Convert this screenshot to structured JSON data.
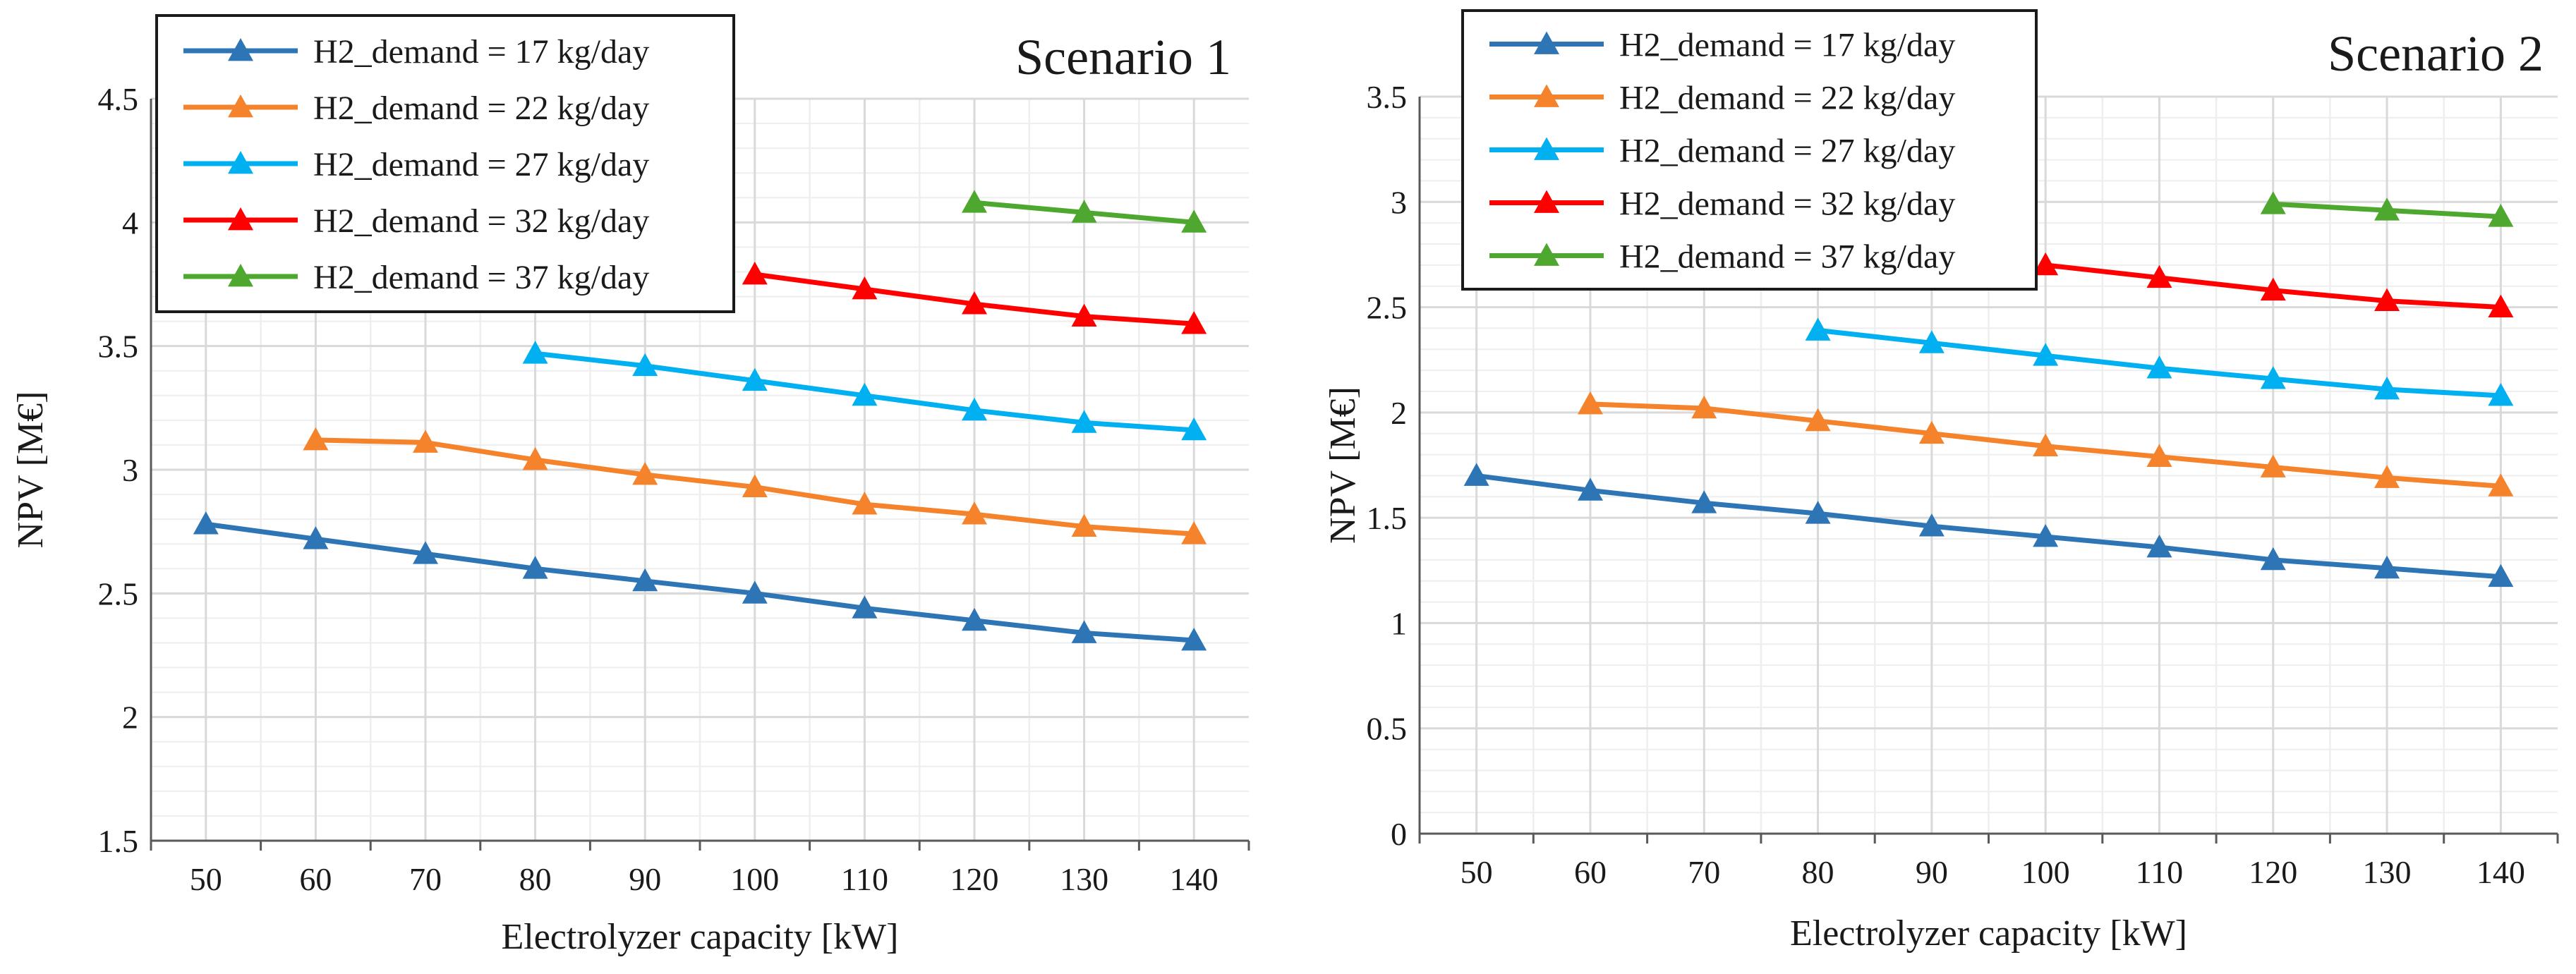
{
  "colors": {
    "series": [
      "#2e75b6",
      "#f5832b",
      "#00b0f0",
      "#ff0000",
      "#4ea72e"
    ],
    "grid_major": "#d9d9d9",
    "grid_minor": "#eeeeee",
    "axis": "#595959"
  },
  "chart_data": [
    {
      "type": "line",
      "title": "Scenario 1",
      "xlabel": "Electrolyzer capacity [kW]",
      "ylabel": "NPV [M€]",
      "xlim": [
        45,
        145
      ],
      "ylim": [
        1.5,
        4.5
      ],
      "xticks": [
        50,
        60,
        70,
        80,
        90,
        100,
        110,
        120,
        130,
        140
      ],
      "yticks": [
        1.5,
        2,
        2.5,
        3,
        3.5,
        4,
        4.5
      ],
      "ytick_labels": [
        "1.5",
        "2",
        "2.5",
        "3",
        "3.5",
        "4",
        "4.5"
      ],
      "grid": true,
      "legend": "top-left",
      "series": [
        {
          "name": "H2_demand = 17 kg/day",
          "x": [
            50,
            60,
            70,
            80,
            90,
            100,
            110,
            120,
            130,
            140
          ],
          "values": [
            2.78,
            2.72,
            2.66,
            2.6,
            2.55,
            2.5,
            2.44,
            2.39,
            2.34,
            2.31
          ]
        },
        {
          "name": "H2_demand = 22 kg/day",
          "x": [
            60,
            70,
            80,
            90,
            100,
            110,
            120,
            130,
            140
          ],
          "values": [
            3.12,
            3.11,
            3.04,
            2.98,
            2.93,
            2.86,
            2.82,
            2.77,
            2.74
          ]
        },
        {
          "name": "H2_demand = 27 kg/day",
          "x": [
            80,
            90,
            100,
            110,
            120,
            130,
            140
          ],
          "values": [
            3.47,
            3.42,
            3.36,
            3.3,
            3.24,
            3.19,
            3.16
          ]
        },
        {
          "name": "H2_demand = 32 kg/day",
          "x": [
            100,
            110,
            120,
            130,
            140
          ],
          "values": [
            3.79,
            3.73,
            3.67,
            3.62,
            3.59
          ]
        },
        {
          "name": "H2_demand = 37 kg/day",
          "x": [
            120,
            130,
            140
          ],
          "values": [
            4.08,
            4.04,
            4.0
          ]
        }
      ]
    },
    {
      "type": "line",
      "title": "Scenario 2",
      "xlabel": "Electrolyzer capacity [kW]",
      "ylabel": "NPV [M€]",
      "xlim": [
        45,
        145
      ],
      "ylim": [
        0,
        3.5
      ],
      "xticks": [
        50,
        60,
        70,
        80,
        90,
        100,
        110,
        120,
        130,
        140
      ],
      "yticks": [
        0,
        0.5,
        1,
        1.5,
        2,
        2.5,
        3,
        3.5
      ],
      "ytick_labels": [
        "0",
        "0.5",
        "1",
        "1.5",
        "2",
        "2.5",
        "3",
        "3.5"
      ],
      "grid": true,
      "legend": "top-left",
      "series": [
        {
          "name": "H2_demand = 17 kg/day",
          "x": [
            50,
            60,
            70,
            80,
            90,
            100,
            110,
            120,
            130,
            140
          ],
          "values": [
            1.7,
            1.63,
            1.57,
            1.52,
            1.46,
            1.41,
            1.36,
            1.3,
            1.26,
            1.22
          ]
        },
        {
          "name": "H2_demand = 22 kg/day",
          "x": [
            60,
            70,
            80,
            90,
            100,
            110,
            120,
            130,
            140
          ],
          "values": [
            2.04,
            2.02,
            1.96,
            1.9,
            1.84,
            1.79,
            1.74,
            1.69,
            1.65
          ]
        },
        {
          "name": "H2_demand = 27 kg/day",
          "x": [
            80,
            90,
            100,
            110,
            120,
            130,
            140
          ],
          "values": [
            2.39,
            2.33,
            2.27,
            2.21,
            2.16,
            2.11,
            2.08
          ]
        },
        {
          "name": "H2_demand = 32 kg/day",
          "x": [
            100,
            110,
            120,
            130,
            140
          ],
          "values": [
            2.7,
            2.64,
            2.58,
            2.53,
            2.5
          ]
        },
        {
          "name": "H2_demand = 37 kg/day",
          "x": [
            120,
            130,
            140
          ],
          "values": [
            2.99,
            2.96,
            2.93
          ]
        }
      ]
    }
  ]
}
